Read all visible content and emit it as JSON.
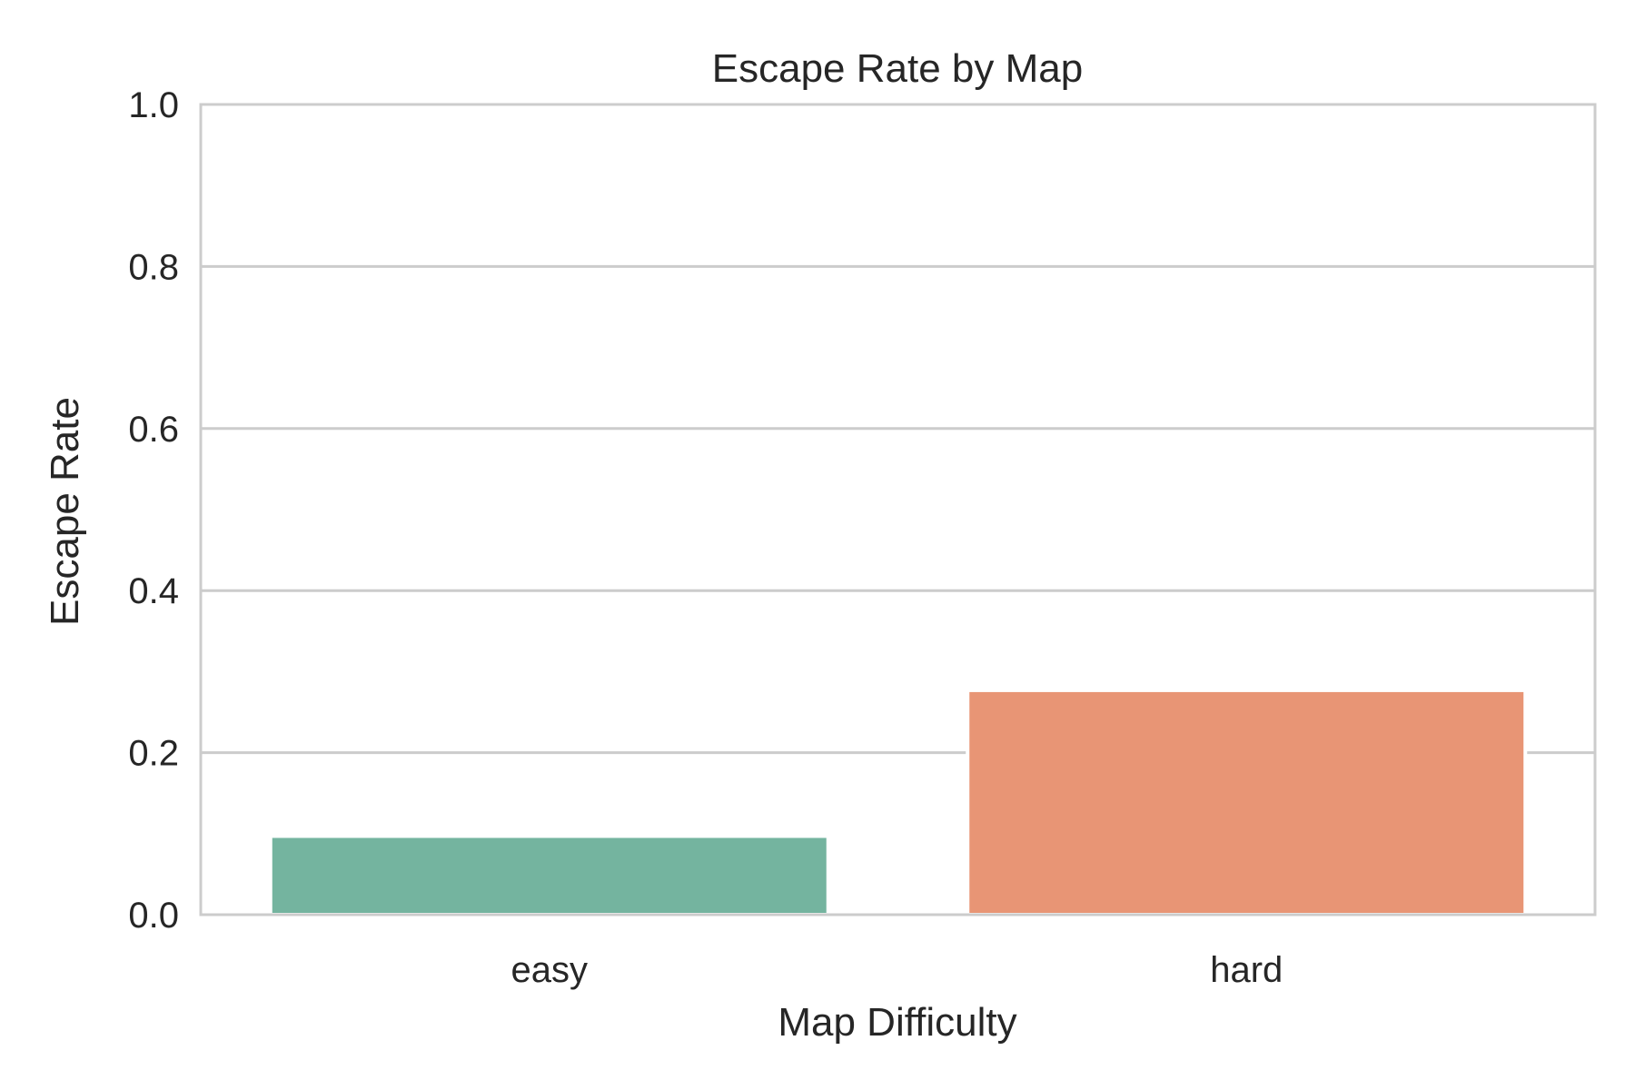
{
  "chart_data": {
    "type": "bar",
    "title": "Escape Rate by Map",
    "xlabel": "Map Difficulty",
    "ylabel": "Escape Rate",
    "categories": [
      "easy",
      "hard"
    ],
    "values": [
      0.097,
      0.277
    ],
    "colors": [
      "#74b49f",
      "#e89575"
    ],
    "ylim": [
      0,
      1.0
    ],
    "yticks": [
      "0.0",
      "0.2",
      "0.4",
      "0.6",
      "0.8",
      "1.0"
    ],
    "grid": "horizontal",
    "legend": "none"
  },
  "style": {
    "grid_color": "#cccccc",
    "spine_color": "#cccccc",
    "text_color": "#262626"
  }
}
